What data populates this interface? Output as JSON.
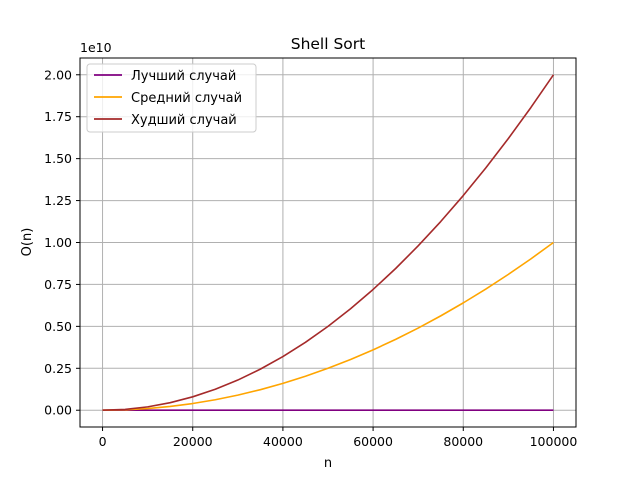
{
  "chart_data": {
    "type": "line",
    "title": "Shell Sort",
    "xlabel": "n",
    "ylabel": "O(n)",
    "y_offset_label": "1e10",
    "xlim": [
      -5000,
      105000
    ],
    "ylim": [
      -0.1,
      2.1
    ],
    "x_ticks": [
      0,
      20000,
      40000,
      60000,
      80000,
      100000
    ],
    "x_tick_labels": [
      "0",
      "20000",
      "40000",
      "60000",
      "80000",
      "100000"
    ],
    "y_ticks": [
      0.0,
      0.25,
      0.5,
      0.75,
      1.0,
      1.25,
      1.5,
      1.75,
      2.0
    ],
    "y_tick_labels": [
      "0.00",
      "0.25",
      "0.50",
      "0.75",
      "1.00",
      "1.25",
      "1.50",
      "1.75",
      "2.00"
    ],
    "grid": true,
    "legend_position": "top-left",
    "x": [
      0,
      5000,
      10000,
      15000,
      20000,
      25000,
      30000,
      35000,
      40000,
      45000,
      50000,
      55000,
      60000,
      65000,
      70000,
      75000,
      80000,
      85000,
      90000,
      95000,
      100000
    ],
    "series": [
      {
        "name": "Лучший случай",
        "color": "#800080",
        "values": [
          0,
          8.5e-06,
          1.85e-05,
          2.89e-05,
          3.96e-05,
          5.07e-05,
          6.19e-05,
          7.33e-05,
          8.49e-05,
          9.67e-05,
          0.0001086,
          0.0001206,
          0.0001328,
          0.000145,
          0.0001574,
          0.0001698,
          0.0001823,
          0.0001949,
          0.0002076,
          0.0002204,
          0.0002332
        ]
      },
      {
        "name": "Средний случай",
        "color": "#ffa500",
        "values": [
          0,
          0.0025,
          0.01,
          0.0225,
          0.04,
          0.0625,
          0.09,
          0.1225,
          0.16,
          0.2025,
          0.25,
          0.3025,
          0.36,
          0.4225,
          0.49,
          0.5625,
          0.64,
          0.7225,
          0.81,
          0.9025,
          1.0
        ]
      },
      {
        "name": "Худший случай",
        "color": "#a52a2a",
        "values": [
          0,
          0.005,
          0.02,
          0.045,
          0.08,
          0.125,
          0.18,
          0.245,
          0.32,
          0.405,
          0.5,
          0.605,
          0.72,
          0.845,
          0.98,
          1.125,
          1.28,
          1.445,
          1.62,
          1.805,
          2.0
        ]
      }
    ]
  }
}
